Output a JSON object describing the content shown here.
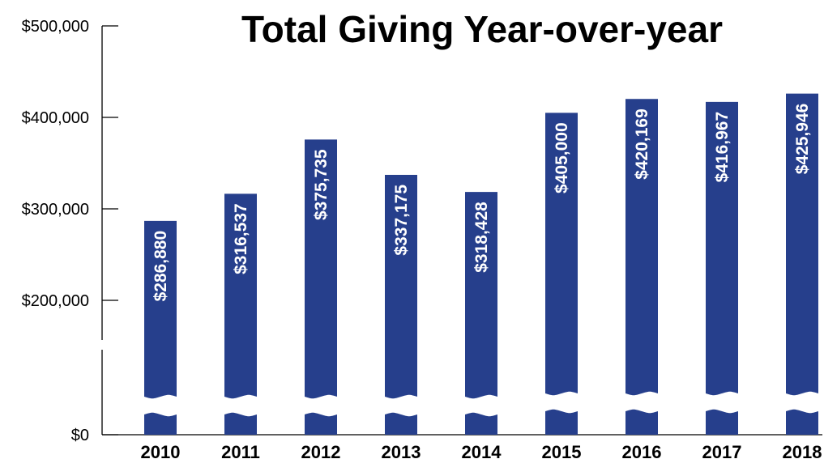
{
  "chart_data": {
    "type": "bar",
    "title": "Total Giving Year-over-year",
    "categories": [
      "2010",
      "2011",
      "2012",
      "2013",
      "2014",
      "2015",
      "2016",
      "2017",
      "2018"
    ],
    "values": [
      286880,
      316537,
      375735,
      337175,
      318428,
      405000,
      420169,
      416967,
      425946
    ],
    "data_labels": [
      "$286,880",
      "$316,537",
      "$375,735",
      "$337,175",
      "$318,428",
      "$405,000",
      "$420,169",
      "$416,967",
      "$425,946"
    ],
    "y_ticks": [
      {
        "value": 0,
        "label": "$0"
      },
      {
        "value": 200000,
        "label": "$200,000"
      },
      {
        "value": 300000,
        "label": "$300,000"
      },
      {
        "value": 400000,
        "label": "$400,000"
      },
      {
        "value": 500000,
        "label": "$500,000"
      }
    ],
    "ylim": [
      0,
      500000
    ],
    "broken_axis": true,
    "xlabel": "",
    "ylabel": "",
    "grid": false,
    "legend": "none",
    "bar_color": "#263f8c"
  }
}
